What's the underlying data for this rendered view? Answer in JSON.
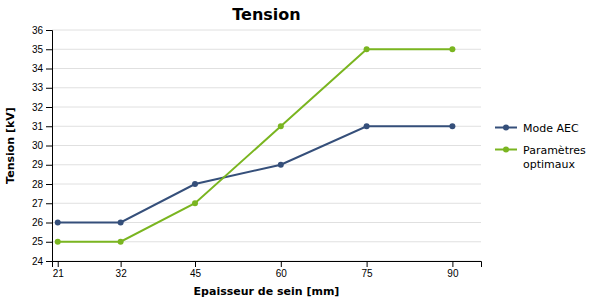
{
  "chart_data": {
    "type": "line",
    "title": "Tension",
    "xlabel": "Epaisseur de sein [mm]",
    "ylabel": "Tension [kV]",
    "x": [
      21,
      32,
      45,
      60,
      75,
      90
    ],
    "series": [
      {
        "name": "Mode AEC",
        "color": "#354f7a",
        "marker": "circle",
        "values": [
          26,
          26,
          28,
          29,
          31,
          31
        ]
      },
      {
        "name": "Paramètres\noptimaux",
        "color": "#7ab520",
        "marker": "circle",
        "values": [
          25,
          25,
          27,
          31,
          35,
          35
        ]
      }
    ],
    "xlim": [
      20,
      95
    ],
    "xticks": [
      21,
      32,
      45,
      60,
      75,
      90
    ],
    "ylim": [
      24,
      36
    ],
    "yticks": [
      24,
      25,
      26,
      27,
      28,
      29,
      30,
      31,
      32,
      33,
      34,
      35,
      36
    ],
    "grid": "y",
    "legend": "right"
  }
}
